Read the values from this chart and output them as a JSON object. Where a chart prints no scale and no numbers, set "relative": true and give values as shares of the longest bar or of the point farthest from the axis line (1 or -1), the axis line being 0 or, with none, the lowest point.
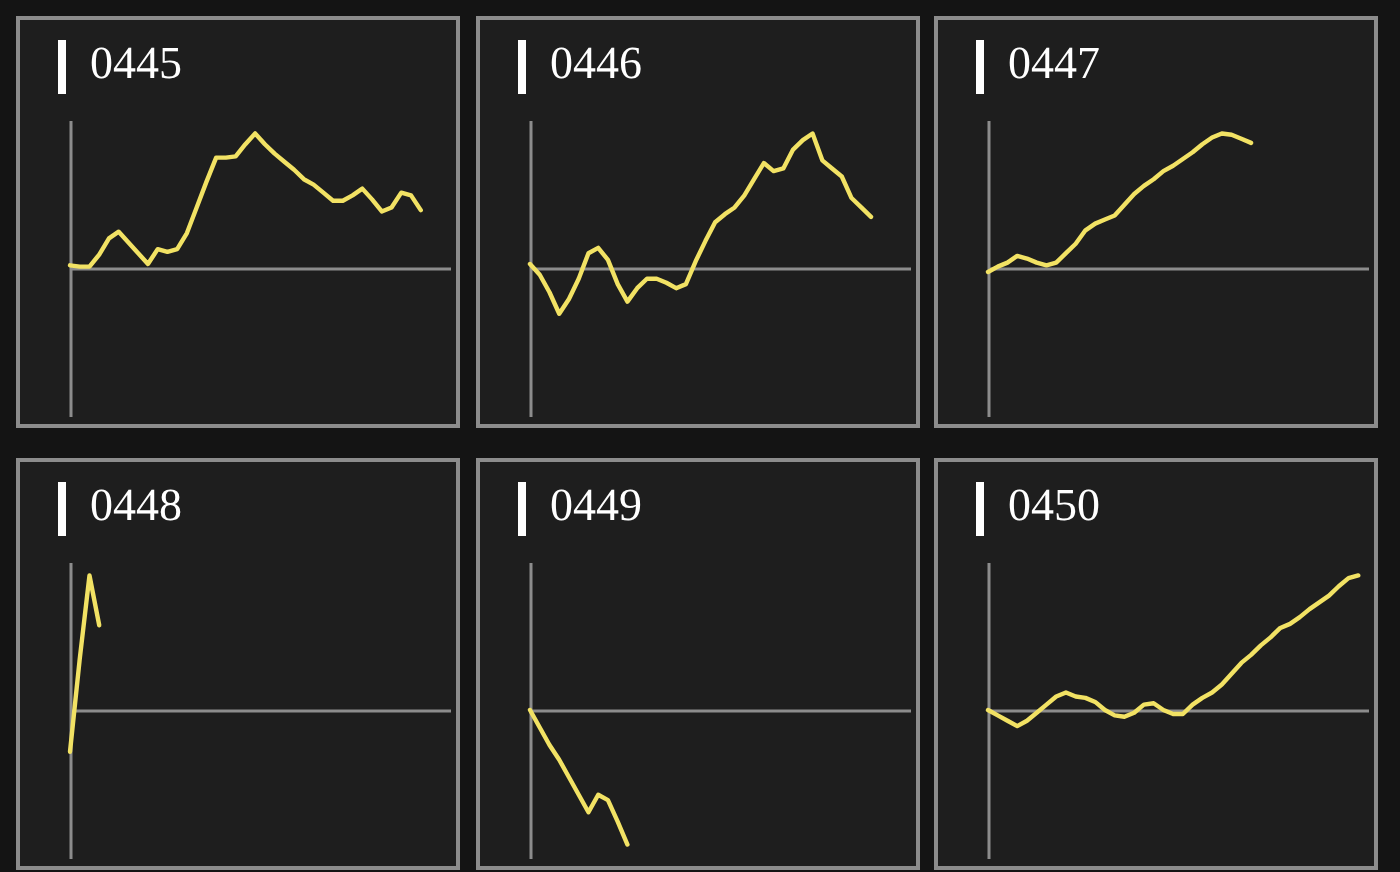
{
  "chart_data": [
    {
      "type": "line",
      "title": "0445",
      "relative": true,
      "categories": [
        null,
        null,
        null,
        null,
        null,
        null,
        null,
        null,
        null,
        null,
        null,
        null,
        null,
        null,
        null,
        null,
        null,
        null,
        null,
        null,
        null,
        null,
        null,
        null,
        null,
        null,
        null,
        null,
        null,
        null,
        null,
        null,
        null,
        null,
        null,
        null,
        null,
        null,
        null,
        null
      ],
      "series": [
        {
          "color": "#f2e264",
          "values": [
            0.02,
            0.01,
            0.01,
            0.1,
            0.22,
            0.27,
            0.19,
            0.11,
            0.03,
            0.14,
            0.12,
            0.14,
            0.26,
            0.45,
            0.64,
            0.82,
            0.82,
            0.83,
            0.92,
            1.0,
            0.92,
            0.85,
            0.79,
            0.73,
            0.66,
            0.62,
            0.56,
            0.5,
            0.5,
            0.54,
            0.59,
            0.51,
            0.42,
            0.45,
            0.56,
            0.54,
            0.43,
            null,
            null,
            null
          ]
        }
      ]
    },
    {
      "type": "line",
      "title": "0446",
      "relative": true,
      "categories": [
        null,
        null,
        null,
        null,
        null,
        null,
        null,
        null,
        null,
        null,
        null,
        null,
        null,
        null,
        null,
        null,
        null,
        null,
        null,
        null,
        null,
        null,
        null,
        null,
        null,
        null,
        null,
        null,
        null,
        null,
        null,
        null,
        null,
        null,
        null,
        null,
        null,
        null,
        null,
        null
      ],
      "series": [
        {
          "color": "#f2e264",
          "values": [
            0.03,
            -0.05,
            -0.18,
            -0.34,
            -0.23,
            -0.08,
            0.11,
            0.15,
            0.06,
            -0.12,
            -0.25,
            -0.15,
            -0.08,
            -0.08,
            -0.11,
            -0.15,
            -0.12,
            0.05,
            0.2,
            0.34,
            0.4,
            0.45,
            0.54,
            0.66,
            0.78,
            0.72,
            0.74,
            0.88,
            0.95,
            1.0,
            0.8,
            0.74,
            0.68,
            0.52,
            0.45,
            0.38,
            null,
            null,
            null,
            null
          ]
        }
      ]
    },
    {
      "type": "line",
      "title": "0447",
      "relative": true,
      "categories": [
        null,
        null,
        null,
        null,
        null,
        null,
        null,
        null,
        null,
        null,
        null,
        null,
        null,
        null,
        null,
        null,
        null,
        null,
        null,
        null,
        null,
        null,
        null,
        null,
        null,
        null,
        null,
        null,
        null,
        null,
        null,
        null,
        null,
        null,
        null,
        null,
        null,
        null,
        null,
        null
      ],
      "series": [
        {
          "color": "#f2e264",
          "values": [
            -0.03,
            0.01,
            0.04,
            0.09,
            0.07,
            0.04,
            0.02,
            0.04,
            0.11,
            0.18,
            0.28,
            0.33,
            0.36,
            0.39,
            0.47,
            0.55,
            0.61,
            0.66,
            0.72,
            0.76,
            0.81,
            0.86,
            0.92,
            0.97,
            1.0,
            0.99,
            0.96,
            0.93,
            null,
            null,
            null,
            null,
            null,
            null,
            null,
            null,
            null,
            null,
            null,
            null
          ]
        }
      ]
    },
    {
      "type": "line",
      "title": "0448",
      "relative": true,
      "categories": [
        null,
        null,
        null,
        null,
        null,
        null,
        null,
        null,
        null,
        null,
        null,
        null,
        null,
        null,
        null,
        null,
        null,
        null,
        null,
        null,
        null,
        null,
        null,
        null,
        null,
        null,
        null,
        null,
        null,
        null,
        null,
        null,
        null,
        null,
        null,
        null,
        null,
        null,
        null,
        null
      ],
      "series": [
        {
          "color": "#f2e264",
          "values": [
            -0.31,
            0.38,
            1.0,
            0.63,
            null,
            null,
            null,
            null,
            null,
            null,
            null,
            null,
            null,
            null,
            null,
            null,
            null,
            null,
            null,
            null,
            null,
            null,
            null,
            null,
            null,
            null,
            null,
            null,
            null,
            null,
            null,
            null,
            null,
            null,
            null,
            null,
            null,
            null,
            null,
            null
          ]
        }
      ]
    },
    {
      "type": "line",
      "title": "0449",
      "relative": true,
      "categories": [
        null,
        null,
        null,
        null,
        null,
        null,
        null,
        null,
        null,
        null,
        null,
        null,
        null,
        null,
        null,
        null,
        null,
        null,
        null,
        null,
        null,
        null,
        null,
        null,
        null,
        null,
        null,
        null,
        null,
        null,
        null,
        null,
        null,
        null,
        null,
        null,
        null,
        null,
        null,
        null
      ],
      "series": [
        {
          "color": "#f2e264",
          "values": [
            0,
            -0.13,
            -0.26,
            -0.37,
            -0.5,
            -0.63,
            -0.76,
            -0.63,
            -0.67,
            -0.83,
            -1.0,
            null,
            null,
            null,
            null,
            null,
            null,
            null,
            null,
            null,
            null,
            null,
            null,
            null,
            null,
            null,
            null,
            null,
            null,
            null,
            null,
            null,
            null,
            null,
            null,
            null,
            null,
            null,
            null,
            null
          ]
        }
      ]
    },
    {
      "type": "line",
      "title": "0450",
      "relative": true,
      "categories": [
        null,
        null,
        null,
        null,
        null,
        null,
        null,
        null,
        null,
        null,
        null,
        null,
        null,
        null,
        null,
        null,
        null,
        null,
        null,
        null,
        null,
        null,
        null,
        null,
        null,
        null,
        null,
        null,
        null,
        null,
        null,
        null,
        null,
        null,
        null,
        null,
        null,
        null,
        null,
        null
      ],
      "series": [
        {
          "color": "#f2e264",
          "values": [
            0.0,
            -0.04,
            -0.08,
            -0.12,
            -0.08,
            -0.02,
            0.04,
            0.1,
            0.13,
            0.1,
            0.09,
            0.06,
            0.0,
            -0.04,
            -0.05,
            -0.02,
            0.04,
            0.05,
            0.0,
            -0.03,
            -0.03,
            0.04,
            0.09,
            0.13,
            0.19,
            0.27,
            0.35,
            0.41,
            0.48,
            0.54,
            0.61,
            0.64,
            0.69,
            0.75,
            0.8,
            0.85,
            0.92,
            0.98,
            1.0,
            null
          ]
        }
      ]
    }
  ]
}
